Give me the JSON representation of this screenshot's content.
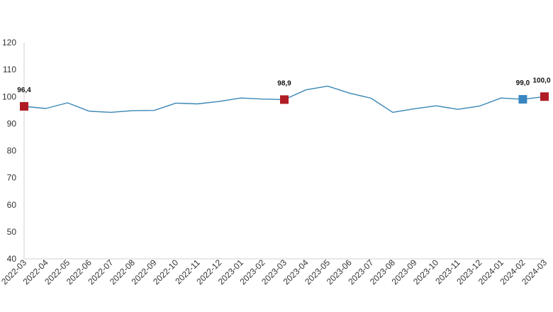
{
  "chart_data": {
    "type": "line",
    "title": "",
    "xlabel": "",
    "ylabel": "",
    "ylim": [
      40,
      120
    ],
    "yticks": [
      40,
      50,
      60,
      70,
      80,
      90,
      100,
      110,
      120
    ],
    "grid": false,
    "legend": "none",
    "x": [
      "2022-03",
      "2022-04",
      "2022-05",
      "2022-06",
      "2022-07",
      "2022-08",
      "2022-09",
      "2022-10",
      "2022-11",
      "2022-12",
      "2023-01",
      "2023-02",
      "2023-03",
      "2023-04",
      "2023-05",
      "2023-06",
      "2023-07",
      "2023-08",
      "2023-09",
      "2023-10",
      "2023-11",
      "2023-12",
      "2024-01",
      "2024-02",
      "2024-03"
    ],
    "series": [
      {
        "values": [
          96.4,
          95.6,
          97.7,
          94.6,
          94.2,
          94.8,
          94.9,
          97.6,
          97.3,
          98.2,
          99.5,
          99.1,
          98.9,
          102.5,
          103.9,
          101.3,
          99.4,
          94.2,
          95.5,
          96.6,
          95.3,
          96.5,
          99.5,
          99.0,
          100.0
        ],
        "color": "#3a87b7"
      }
    ],
    "highlights": [
      {
        "index": 0,
        "label": "96,4",
        "color": "#b01c24"
      },
      {
        "index": 12,
        "label": "98,9",
        "color": "#b01c24"
      },
      {
        "index": 23,
        "label": "99,0",
        "color": "#3a86c0"
      },
      {
        "index": 24,
        "label": "100,0",
        "color": "#b01c24"
      }
    ],
    "axis_color": "#d0d0d0"
  }
}
